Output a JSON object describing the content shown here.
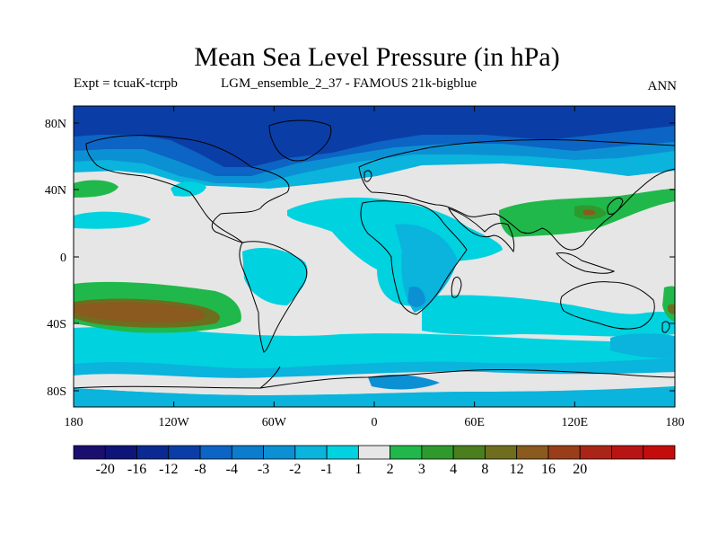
{
  "title": "Mean Sea Level Pressure (in hPa)",
  "subtitle_left": "Expt = tcuaK-tcrpb",
  "subtitle_mid": "LGM_ensemble_2_37 - FAMOUS 21k-bigblue",
  "subtitle_right": "ANN",
  "colors": {
    "neutral": "#e6e6e6",
    "neg_1": "#00d2e0",
    "neg_2": "#0ab4dc",
    "neg_3": "#0c90d4",
    "neg_4": "#0c64c4",
    "neg_8": "#0a3ea6",
    "pos_1": "#20b84a",
    "pos_2": "#2e9a2e",
    "pos_3": "#6e6e1e",
    "pos_4": "#8a5a1e",
    "land_outline": "#000000"
  },
  "map": {
    "lat_labels": [
      "80N",
      "40N",
      "0",
      "40S",
      "80S"
    ],
    "lon_labels": [
      "180",
      "120W",
      "60W",
      "0",
      "60E",
      "120E",
      "180"
    ]
  },
  "colorbar": {
    "colors": [
      "#1a0f6e",
      "#0e1578",
      "#0a2a92",
      "#0a3ea6",
      "#0c64c4",
      "#0c7ccc",
      "#0c90d4",
      "#0ab4dc",
      "#00d2e0",
      "#e6e6e6",
      "#20b84a",
      "#2e9a2e",
      "#4a7e1e",
      "#6e6e1e",
      "#8a5a1e",
      "#9a3e1a",
      "#aa2418",
      "#b81414",
      "#c40c0c"
    ],
    "labels": [
      "-20",
      "-16",
      "-12",
      "-8",
      "-4",
      "-3",
      "-2",
      "-1",
      "1",
      "2",
      "3",
      "4",
      "8",
      "12",
      "16",
      "20"
    ]
  }
}
